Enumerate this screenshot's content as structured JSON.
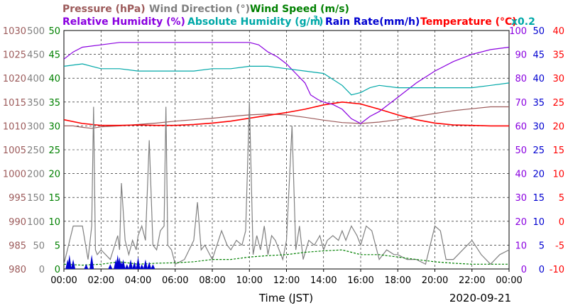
{
  "chart_data": {
    "type": "line",
    "title_parts": [
      {
        "key": "pressure",
        "text": "Pressure (hPa)",
        "color": "#9c5a5a"
      },
      {
        "key": "wind_dir",
        "text": "Wind Direction (°)",
        "color": "#808080"
      },
      {
        "key": "wind_speed",
        "text": "Wind Speed (m/s)",
        "color": "#008000"
      },
      {
        "key": "rel_hum",
        "text": "Relative Humidity (%)",
        "color": "#8a00e0"
      },
      {
        "key": "abs_hum_a",
        "text": "Absolute Humidity (g/m",
        "color": "#00a8a8"
      },
      {
        "key": "abs_hum_sup",
        "text": "3",
        "color": "#00a8a8"
      },
      {
        "key": "abs_hum_b",
        "text": ")",
        "color": "#00a8a8"
      },
      {
        "key": "rain",
        "text": "Rain Rate(mm/h)",
        "color": "#0000d0"
      },
      {
        "key": "temp",
        "text": "Temperature (°C)",
        "color": "#ff0000"
      },
      {
        "key": "abs_scale",
        "text": "x0.2",
        "color": "#00a8a8"
      }
    ],
    "xlabel": "Time (JST)",
    "date": "2020-09-21",
    "xlim": [
      0,
      24
    ],
    "x_ticks": [
      "00:00",
      "02:00",
      "04:00",
      "06:00",
      "08:00",
      "10:00",
      "12:00",
      "14:00",
      "16:00",
      "18:00",
      "20:00",
      "22:00",
      "00:00"
    ],
    "axes": {
      "pressure": {
        "ticks": [
          "980",
          "985",
          "990",
          "995",
          "1000",
          "1005",
          "1010",
          "1015",
          "1020",
          "1025",
          "1030"
        ],
        "range": [
          980,
          1030
        ],
        "color": "#9c5a5a"
      },
      "wind_dir": {
        "ticks": [
          "0",
          "50",
          "100",
          "150",
          "200",
          "250",
          "300",
          "350",
          "400",
          "450",
          "500"
        ],
        "range": [
          0,
          500
        ],
        "color": "#808080"
      },
      "wind_speed": {
        "ticks": [
          "0",
          "5",
          "10",
          "15",
          "20",
          "25",
          "30",
          "35",
          "40",
          "45",
          "50"
        ],
        "range": [
          0,
          50
        ],
        "color": "#008000"
      },
      "rel_hum": {
        "ticks": [
          "0",
          "10",
          "20",
          "30",
          "40",
          "50",
          "60",
          "70",
          "80",
          "90",
          "100"
        ],
        "range": [
          0,
          100
        ],
        "color": "#8a00e0"
      },
      "rain": {
        "ticks": [
          "0",
          "5",
          "10",
          "15",
          "20",
          "25",
          "30",
          "35",
          "40",
          "45",
          "50"
        ],
        "range": [
          0,
          50
        ],
        "color": "#0000d0"
      },
      "temp": {
        "ticks": [
          "-10",
          "-5",
          "0",
          "5",
          "10",
          "15",
          "20",
          "25",
          "30",
          "35",
          "40"
        ],
        "range": [
          -10,
          40
        ],
        "color": "#ff0000"
      }
    },
    "grid": true,
    "series": [
      {
        "name": "Pressure (hPa)",
        "axis": "pressure",
        "color": "#9c5a5a",
        "x": [
          0,
          0.5,
          1,
          1.5,
          2,
          3,
          4,
          5,
          6,
          7,
          8,
          9,
          10,
          11,
          12,
          13,
          14,
          15,
          16,
          17,
          18,
          19,
          20,
          21,
          22,
          23,
          24
        ],
        "y": [
          1010,
          1010,
          1009.7,
          1009.5,
          1009.8,
          1010,
          1010.3,
          1010.6,
          1011,
          1011.3,
          1011.6,
          1012,
          1012.3,
          1012.5,
          1012.3,
          1011.8,
          1011.2,
          1010.7,
          1010.5,
          1010.8,
          1011.3,
          1012,
          1012.6,
          1013.2,
          1013.6,
          1014,
          1014
        ]
      },
      {
        "name": "Temperature (°C)",
        "axis": "temp",
        "color": "#ff0000",
        "x": [
          0,
          1,
          2,
          3,
          4,
          5,
          6,
          7,
          8,
          9,
          10,
          11,
          12,
          13,
          14,
          15,
          16,
          17,
          18,
          19,
          20,
          21,
          22,
          23,
          24
        ],
        "y": [
          21.3,
          20.5,
          20.1,
          20.1,
          20.2,
          20.1,
          20.1,
          20.3,
          20.6,
          21,
          21.6,
          22.2,
          22.8,
          23.5,
          24.4,
          25,
          24.6,
          23.5,
          22.3,
          21.3,
          20.6,
          20.2,
          20.1,
          20,
          20
        ]
      },
      {
        "name": "Relative Humidity (%)",
        "axis": "rel_hum",
        "color": "#8a00e0",
        "x": [
          0,
          0.5,
          1,
          2,
          3,
          4,
          5,
          6,
          7,
          8,
          9,
          10,
          10.5,
          11,
          11.5,
          12,
          12.5,
          13,
          13.3,
          13.7,
          14,
          14.5,
          15,
          15.5,
          16,
          16.5,
          17,
          18,
          19,
          20,
          21,
          22,
          23,
          24
        ],
        "y": [
          88,
          91,
          93,
          94,
          95,
          95,
          95,
          95,
          95,
          95,
          95,
          95,
          94,
          91,
          89,
          86,
          82,
          78,
          73,
          71,
          70,
          69,
          67,
          63,
          61,
          64,
          66,
          72,
          78,
          83,
          87,
          90,
          92,
          93
        ]
      },
      {
        "name": "Absolute Humidity (g/m3) x0.2",
        "axis": "rel_hum",
        "color": "#00a8a8",
        "x": [
          0,
          1,
          2,
          3,
          4,
          5,
          6,
          7,
          8,
          9,
          10,
          11,
          12,
          13,
          14,
          15,
          15.5,
          16,
          16.5,
          17,
          18,
          19,
          20,
          21,
          22,
          23,
          24
        ],
        "y": [
          85,
          86,
          84,
          84,
          83,
          83,
          83,
          83,
          84,
          84,
          85,
          85,
          84,
          83,
          82,
          77,
          73,
          74,
          76,
          77,
          76,
          76,
          76,
          76,
          76,
          77,
          78
        ]
      },
      {
        "name": "Wind Direction (°)",
        "axis": "wind_dir",
        "color": "#808080",
        "x": [
          0,
          0.5,
          1,
          1.3,
          1.5,
          1.6,
          1.7,
          1.8,
          2,
          2.5,
          2.9,
          3,
          3.1,
          3.3,
          3.5,
          3.7,
          3.9,
          4,
          4.2,
          4.4,
          4.6,
          4.8,
          5,
          5.2,
          5.4,
          5.5,
          5.6,
          5.8,
          6,
          6.5,
          7,
          7.2,
          7.4,
          7.6,
          8,
          8.5,
          8.8,
          9,
          9.3,
          9.6,
          9.8,
          10,
          10.2,
          10.4,
          10.6,
          10.8,
          11,
          11.2,
          11.4,
          11.6,
          11.8,
          12,
          12.3,
          12.5,
          12.7,
          12.9,
          13.2,
          13.5,
          13.8,
          14,
          14.2,
          14.5,
          14.8,
          15,
          15.2,
          15.5,
          15.8,
          16,
          16.3,
          16.6,
          17,
          17.4,
          17.8,
          18,
          18.5,
          19,
          19.5,
          20,
          20.3,
          20.6,
          21,
          21.5,
          22,
          22.5,
          23,
          23.5,
          24
        ],
        "y": [
          10,
          90,
          90,
          20,
          90,
          340,
          40,
          30,
          40,
          20,
          70,
          40,
          180,
          60,
          30,
          60,
          40,
          70,
          90,
          60,
          270,
          50,
          40,
          80,
          90,
          340,
          50,
          40,
          10,
          20,
          60,
          140,
          40,
          50,
          20,
          80,
          50,
          40,
          60,
          50,
          80,
          350,
          30,
          70,
          40,
          90,
          30,
          70,
          60,
          40,
          20,
          60,
          300,
          40,
          90,
          20,
          60,
          50,
          70,
          40,
          60,
          70,
          60,
          80,
          60,
          90,
          70,
          50,
          90,
          80,
          20,
          40,
          30,
          30,
          20,
          20,
          10,
          90,
          80,
          20,
          20,
          40,
          60,
          30,
          10,
          30,
          40
        ]
      },
      {
        "name": "Wind Speed (m/s)",
        "axis": "wind_speed",
        "color": "#008000",
        "x": [
          0,
          1,
          2,
          3,
          4,
          5,
          6,
          7,
          8,
          9,
          10,
          11,
          12,
          13,
          14,
          15,
          16,
          17,
          18,
          19,
          20,
          21,
          22,
          23,
          24
        ],
        "y": [
          1,
          0.8,
          1,
          1.5,
          1,
          1.2,
          1.3,
          1.5,
          2,
          2,
          2.5,
          2.8,
          3,
          3.5,
          3.8,
          4,
          3,
          3,
          2.5,
          2,
          1.5,
          1.2,
          1,
          1,
          1
        ]
      },
      {
        "name": "Rain Rate(mm/h)",
        "axis": "rain",
        "color": "#0000d0",
        "x": [
          0.2,
          0.3,
          0.5,
          1.2,
          1.5,
          2.5,
          2.8,
          2.9,
          3,
          3.1,
          3.2,
          3.4,
          3.6,
          3.8,
          4,
          4.2,
          4.4,
          4.6,
          4.8
        ],
        "y": [
          2,
          3,
          2,
          1,
          3,
          1,
          2,
          3,
          2.5,
          1.5,
          2,
          1,
          2,
          1.5,
          2.5,
          1,
          2,
          1.5,
          1
        ]
      }
    ]
  }
}
